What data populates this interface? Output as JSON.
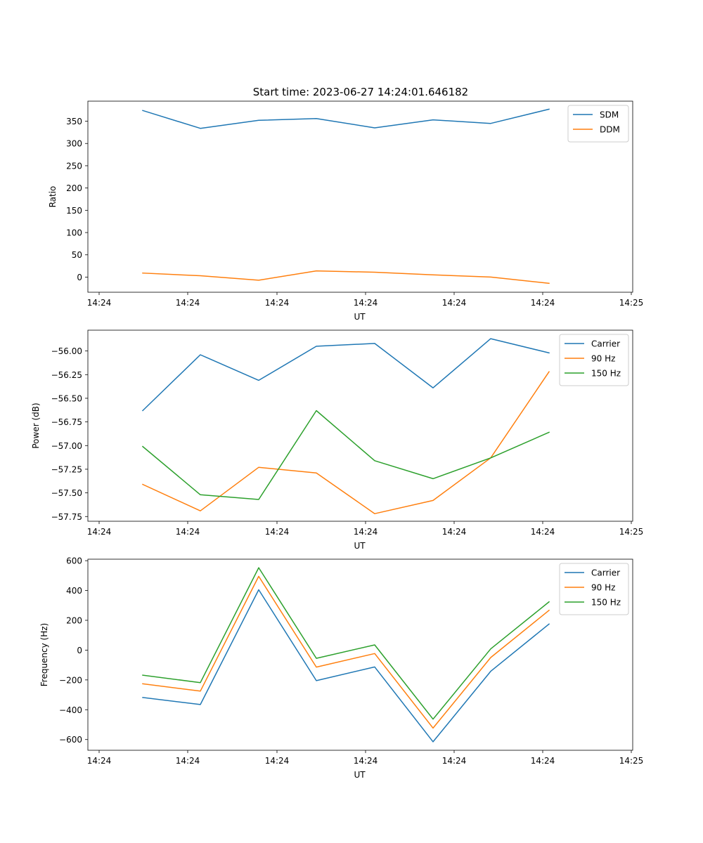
{
  "figure_title": "Start time: 2023-06-27 14:24:01.646182",
  "colors": {
    "blue": "#1f77b4",
    "orange": "#ff7f0e",
    "green": "#2ca02c"
  },
  "chart_data": [
    {
      "type": "line",
      "xlabel": "UT",
      "ylabel": "Ratio",
      "x_tick_labels": [
        "14:24",
        "14:24",
        "14:24",
        "14:24",
        "14:24",
        "14:24",
        "14:25"
      ],
      "ylim": [
        -34,
        395
      ],
      "yticks": [
        0,
        50,
        100,
        150,
        200,
        250,
        300,
        350
      ],
      "legend_position": "upper-right",
      "series": [
        {
          "name": "SDM",
          "color": "#1f77b4",
          "values": [
            374,
            334,
            352,
            356,
            335,
            353,
            345,
            377
          ]
        },
        {
          "name": "DDM",
          "color": "#ff7f0e",
          "values": [
            9,
            3,
            -7,
            14,
            11,
            5,
            0,
            -14
          ]
        }
      ]
    },
    {
      "type": "line",
      "xlabel": "UT",
      "ylabel": "Power (dB)",
      "x_tick_labels": [
        "14:24",
        "14:24",
        "14:24",
        "14:24",
        "14:24",
        "14:24",
        "14:25"
      ],
      "ylim": [
        -57.8,
        -55.78
      ],
      "yticks": [
        -56.0,
        -56.25,
        -56.5,
        -56.75,
        -57.0,
        -57.25,
        -57.5,
        -57.75
      ],
      "ytick_labels": [
        "−56.00",
        "−56.25",
        "−56.50",
        "−56.75",
        "−57.00",
        "−57.25",
        "−57.50",
        "−57.75"
      ],
      "legend_position": "upper-right",
      "series": [
        {
          "name": "Carrier",
          "color": "#1f77b4",
          "values": [
            -56.63,
            -56.04,
            -56.31,
            -55.95,
            -55.92,
            -56.39,
            -55.87,
            -56.02
          ]
        },
        {
          "name": "90 Hz",
          "color": "#ff7f0e",
          "values": [
            -57.41,
            -57.69,
            -57.23,
            -57.29,
            -57.72,
            -57.58,
            -57.13,
            -56.22
          ]
        },
        {
          "name": "150 Hz",
          "color": "#2ca02c",
          "values": [
            -57.01,
            -57.52,
            -57.57,
            -56.63,
            -57.16,
            -57.35,
            -57.13,
            -56.86
          ]
        }
      ]
    },
    {
      "type": "line",
      "xlabel": "UT",
      "ylabel": "Frequency (Hz)",
      "x_tick_labels": [
        "14:24",
        "14:24",
        "14:24",
        "14:24",
        "14:24",
        "14:24",
        "14:25"
      ],
      "ylim": [
        -672,
        610
      ],
      "yticks": [
        -600,
        -400,
        -200,
        0,
        200,
        400,
        600
      ],
      "ytick_labels": [
        "−600",
        "−400",
        "−200",
        "0",
        "200",
        "400",
        "600"
      ],
      "legend_position": "upper-right",
      "series": [
        {
          "name": "Carrier",
          "color": "#1f77b4",
          "values": [
            -318,
            -365,
            405,
            -205,
            -113,
            -615,
            -142,
            175
          ]
        },
        {
          "name": "90 Hz",
          "color": "#ff7f0e",
          "values": [
            -226,
            -275,
            495,
            -114,
            -23,
            -523,
            -50,
            267
          ]
        },
        {
          "name": "150 Hz",
          "color": "#2ca02c",
          "values": [
            -168,
            -218,
            553,
            -55,
            35,
            -463,
            8,
            324
          ]
        }
      ]
    }
  ]
}
